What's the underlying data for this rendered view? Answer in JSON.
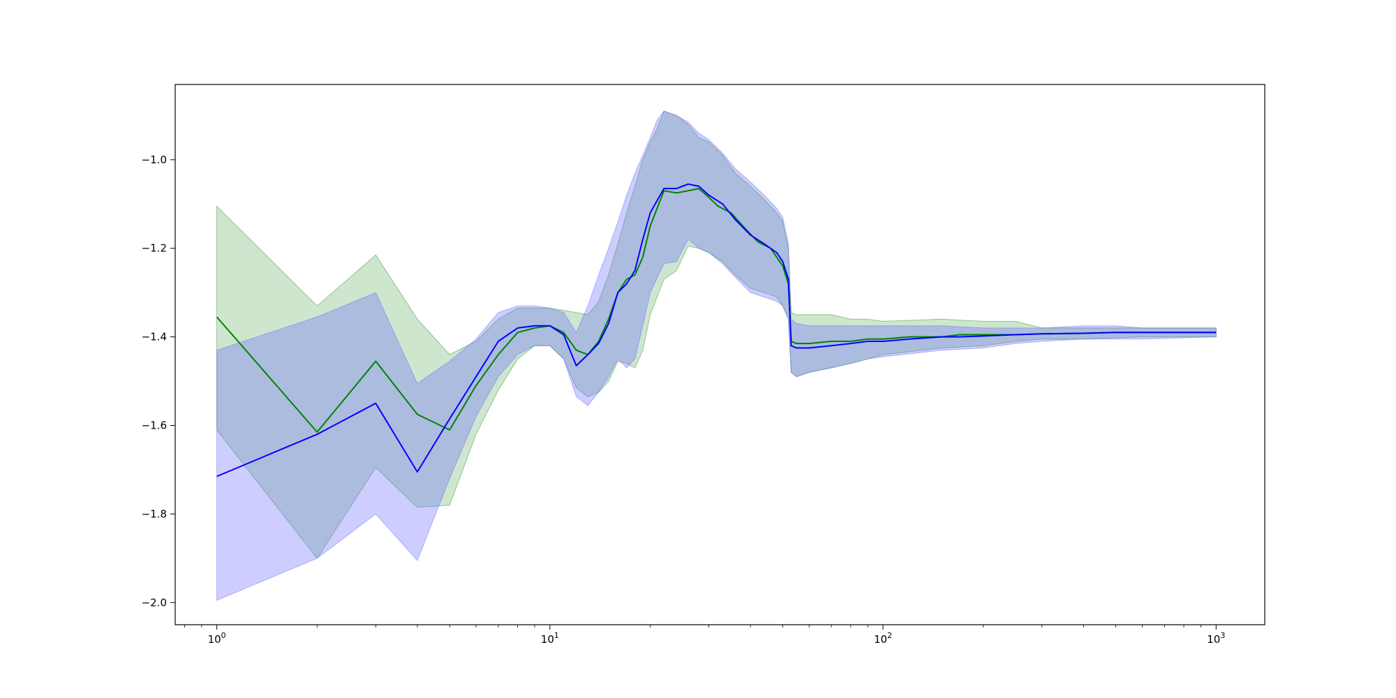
{
  "chart_data": {
    "type": "line",
    "title": "",
    "xlabel": "",
    "ylabel": "",
    "x_scale": "log",
    "xlim": [
      0.75,
      1400
    ],
    "ylim": [
      -2.05,
      -0.83
    ],
    "grid": false,
    "legend": "none",
    "x_ticks": [
      {
        "value": 1,
        "base": "10",
        "exp": "0"
      },
      {
        "value": 10,
        "base": "10",
        "exp": "1"
      },
      {
        "value": 100,
        "base": "10",
        "exp": "2"
      },
      {
        "value": 1000,
        "base": "10",
        "exp": "3"
      }
    ],
    "y_ticks": [
      {
        "value": -1.0,
        "label": "−1.0"
      },
      {
        "value": -1.2,
        "label": "−1.2"
      },
      {
        "value": -1.4,
        "label": "−1.4"
      },
      {
        "value": -1.6,
        "label": "−1.6"
      },
      {
        "value": -1.8,
        "label": "−1.8"
      },
      {
        "value": -2.0,
        "label": "−2.0"
      }
    ],
    "series": [
      {
        "color": "#008000",
        "band_color": "#1f8f1f",
        "band_opacity": 0.22,
        "line": [
          [
            1,
            -1.355
          ],
          [
            2,
            -1.615
          ],
          [
            3,
            -1.455
          ],
          [
            4,
            -1.575
          ],
          [
            5,
            -1.61
          ],
          [
            6,
            -1.51
          ],
          [
            7,
            -1.44
          ],
          [
            8,
            -1.39
          ],
          [
            9,
            -1.38
          ],
          [
            10,
            -1.375
          ],
          [
            11,
            -1.39
          ],
          [
            12,
            -1.43
          ],
          [
            13,
            -1.44
          ],
          [
            14,
            -1.41
          ],
          [
            15,
            -1.36
          ],
          [
            16,
            -1.3
          ],
          [
            17,
            -1.27
          ],
          [
            18,
            -1.26
          ],
          [
            19,
            -1.22
          ],
          [
            20,
            -1.15
          ],
          [
            22,
            -1.07
          ],
          [
            24,
            -1.075
          ],
          [
            26,
            -1.07
          ],
          [
            28,
            -1.065
          ],
          [
            30,
            -1.085
          ],
          [
            32,
            -1.105
          ],
          [
            35,
            -1.12
          ],
          [
            38,
            -1.15
          ],
          [
            42,
            -1.185
          ],
          [
            46,
            -1.2
          ],
          [
            50,
            -1.24
          ],
          [
            52,
            -1.28
          ],
          [
            53,
            -1.41
          ],
          [
            55,
            -1.415
          ],
          [
            60,
            -1.415
          ],
          [
            70,
            -1.41
          ],
          [
            80,
            -1.41
          ],
          [
            90,
            -1.405
          ],
          [
            100,
            -1.405
          ],
          [
            120,
            -1.4
          ],
          [
            150,
            -1.4
          ],
          [
            170,
            -1.395
          ],
          [
            200,
            -1.395
          ],
          [
            250,
            -1.395
          ],
          [
            300,
            -1.393
          ],
          [
            400,
            -1.392
          ],
          [
            500,
            -1.39
          ],
          [
            700,
            -1.39
          ],
          [
            1000,
            -1.39
          ]
        ],
        "upper": [
          [
            1,
            -1.105
          ],
          [
            2,
            -1.33
          ],
          [
            3,
            -1.215
          ],
          [
            4,
            -1.36
          ],
          [
            5,
            -1.44
          ],
          [
            6,
            -1.41
          ],
          [
            7,
            -1.36
          ],
          [
            8,
            -1.335
          ],
          [
            9,
            -1.335
          ],
          [
            10,
            -1.335
          ],
          [
            11,
            -1.34
          ],
          [
            12,
            -1.345
          ],
          [
            13,
            -1.35
          ],
          [
            14,
            -1.32
          ],
          [
            15,
            -1.26
          ],
          [
            16,
            -1.19
          ],
          [
            17,
            -1.12
          ],
          [
            18,
            -1.06
          ],
          [
            19,
            -1.0
          ],
          [
            20,
            -0.96
          ],
          [
            21,
            -0.93
          ],
          [
            22,
            -0.89
          ],
          [
            24,
            -0.9
          ],
          [
            26,
            -0.92
          ],
          [
            28,
            -0.95
          ],
          [
            30,
            -0.96
          ],
          [
            33,
            -0.99
          ],
          [
            36,
            -1.03
          ],
          [
            40,
            -1.06
          ],
          [
            44,
            -1.09
          ],
          [
            48,
            -1.12
          ],
          [
            50,
            -1.14
          ],
          [
            52,
            -1.2
          ],
          [
            53,
            -1.345
          ],
          [
            55,
            -1.35
          ],
          [
            60,
            -1.35
          ],
          [
            70,
            -1.35
          ],
          [
            80,
            -1.36
          ],
          [
            90,
            -1.36
          ],
          [
            100,
            -1.365
          ],
          [
            150,
            -1.36
          ],
          [
            200,
            -1.365
          ],
          [
            250,
            -1.365
          ],
          [
            300,
            -1.38
          ],
          [
            400,
            -1.38
          ],
          [
            600,
            -1.38
          ],
          [
            1000,
            -1.38
          ]
        ],
        "lower": [
          [
            1,
            -1.61
          ],
          [
            2,
            -1.9
          ],
          [
            3,
            -1.695
          ],
          [
            4,
            -1.785
          ],
          [
            5,
            -1.78
          ],
          [
            6,
            -1.62
          ],
          [
            7,
            -1.52
          ],
          [
            8,
            -1.45
          ],
          [
            9,
            -1.42
          ],
          [
            10,
            -1.42
          ],
          [
            11,
            -1.45
          ],
          [
            12,
            -1.515
          ],
          [
            13,
            -1.535
          ],
          [
            14,
            -1.525
          ],
          [
            15,
            -1.5
          ],
          [
            16,
            -1.455
          ],
          [
            17,
            -1.46
          ],
          [
            18,
            -1.47
          ],
          [
            19,
            -1.43
          ],
          [
            20,
            -1.35
          ],
          [
            22,
            -1.27
          ],
          [
            24,
            -1.25
          ],
          [
            26,
            -1.195
          ],
          [
            28,
            -1.2
          ],
          [
            30,
            -1.21
          ],
          [
            33,
            -1.23
          ],
          [
            36,
            -1.26
          ],
          [
            40,
            -1.29
          ],
          [
            44,
            -1.3
          ],
          [
            48,
            -1.31
          ],
          [
            50,
            -1.33
          ],
          [
            52,
            -1.36
          ],
          [
            53,
            -1.48
          ],
          [
            55,
            -1.49
          ],
          [
            60,
            -1.48
          ],
          [
            70,
            -1.47
          ],
          [
            80,
            -1.46
          ],
          [
            90,
            -1.45
          ],
          [
            100,
            -1.44
          ],
          [
            150,
            -1.425
          ],
          [
            200,
            -1.42
          ],
          [
            250,
            -1.41
          ],
          [
            300,
            -1.405
          ],
          [
            400,
            -1.405
          ],
          [
            600,
            -1.4
          ],
          [
            1000,
            -1.4
          ]
        ]
      },
      {
        "color": "#0000ff",
        "band_color": "#6666ff",
        "band_opacity": 0.33,
        "line": [
          [
            1,
            -1.715
          ],
          [
            2,
            -1.62
          ],
          [
            3,
            -1.55
          ],
          [
            4,
            -1.705
          ],
          [
            5,
            -1.585
          ],
          [
            6,
            -1.49
          ],
          [
            7,
            -1.41
          ],
          [
            8,
            -1.38
          ],
          [
            9,
            -1.375
          ],
          [
            10,
            -1.375
          ],
          [
            11,
            -1.395
          ],
          [
            12,
            -1.465
          ],
          [
            13,
            -1.44
          ],
          [
            14,
            -1.415
          ],
          [
            15,
            -1.37
          ],
          [
            16,
            -1.3
          ],
          [
            17,
            -1.28
          ],
          [
            18,
            -1.25
          ],
          [
            19,
            -1.18
          ],
          [
            20,
            -1.12
          ],
          [
            22,
            -1.065
          ],
          [
            24,
            -1.065
          ],
          [
            26,
            -1.055
          ],
          [
            28,
            -1.06
          ],
          [
            30,
            -1.08
          ],
          [
            33,
            -1.1
          ],
          [
            36,
            -1.135
          ],
          [
            40,
            -1.17
          ],
          [
            44,
            -1.19
          ],
          [
            48,
            -1.21
          ],
          [
            50,
            -1.23
          ],
          [
            52,
            -1.27
          ],
          [
            53,
            -1.42
          ],
          [
            55,
            -1.425
          ],
          [
            60,
            -1.425
          ],
          [
            70,
            -1.42
          ],
          [
            80,
            -1.415
          ],
          [
            90,
            -1.41
          ],
          [
            100,
            -1.41
          ],
          [
            120,
            -1.405
          ],
          [
            150,
            -1.4
          ],
          [
            170,
            -1.4
          ],
          [
            200,
            -1.398
          ],
          [
            250,
            -1.395
          ],
          [
            300,
            -1.393
          ],
          [
            400,
            -1.392
          ],
          [
            500,
            -1.39
          ],
          [
            700,
            -1.39
          ],
          [
            1000,
            -1.39
          ]
        ],
        "upper": [
          [
            1,
            -1.43
          ],
          [
            2,
            -1.355
          ],
          [
            3,
            -1.3
          ],
          [
            4,
            -1.505
          ],
          [
            5,
            -1.455
          ],
          [
            6,
            -1.405
          ],
          [
            7,
            -1.345
          ],
          [
            8,
            -1.33
          ],
          [
            9,
            -1.33
          ],
          [
            10,
            -1.335
          ],
          [
            11,
            -1.345
          ],
          [
            12,
            -1.39
          ],
          [
            13,
            -1.33
          ],
          [
            14,
            -1.26
          ],
          [
            15,
            -1.2
          ],
          [
            16,
            -1.14
          ],
          [
            17,
            -1.08
          ],
          [
            18,
            -1.03
          ],
          [
            19,
            -0.99
          ],
          [
            20,
            -0.95
          ],
          [
            21,
            -0.91
          ],
          [
            22,
            -0.89
          ],
          [
            24,
            -0.9
          ],
          [
            26,
            -0.915
          ],
          [
            28,
            -0.94
          ],
          [
            30,
            -0.955
          ],
          [
            33,
            -0.985
          ],
          [
            36,
            -1.02
          ],
          [
            40,
            -1.05
          ],
          [
            44,
            -1.08
          ],
          [
            48,
            -1.11
          ],
          [
            50,
            -1.13
          ],
          [
            52,
            -1.19
          ],
          [
            53,
            -1.36
          ],
          [
            55,
            -1.37
          ],
          [
            60,
            -1.375
          ],
          [
            70,
            -1.375
          ],
          [
            80,
            -1.375
          ],
          [
            100,
            -1.375
          ],
          [
            150,
            -1.375
          ],
          [
            200,
            -1.38
          ],
          [
            300,
            -1.38
          ],
          [
            400,
            -1.375
          ],
          [
            500,
            -1.375
          ],
          [
            600,
            -1.38
          ],
          [
            1000,
            -1.38
          ]
        ],
        "lower": [
          [
            1,
            -1.995
          ],
          [
            2,
            -1.9
          ],
          [
            3,
            -1.8
          ],
          [
            4,
            -1.905
          ],
          [
            5,
            -1.72
          ],
          [
            6,
            -1.58
          ],
          [
            7,
            -1.49
          ],
          [
            8,
            -1.44
          ],
          [
            9,
            -1.42
          ],
          [
            10,
            -1.42
          ],
          [
            11,
            -1.45
          ],
          [
            12,
            -1.535
          ],
          [
            13,
            -1.555
          ],
          [
            14,
            -1.525
          ],
          [
            15,
            -1.49
          ],
          [
            16,
            -1.45
          ],
          [
            17,
            -1.47
          ],
          [
            18,
            -1.45
          ],
          [
            19,
            -1.375
          ],
          [
            20,
            -1.3
          ],
          [
            22,
            -1.235
          ],
          [
            24,
            -1.23
          ],
          [
            26,
            -1.18
          ],
          [
            28,
            -1.2
          ],
          [
            30,
            -1.21
          ],
          [
            33,
            -1.235
          ],
          [
            36,
            -1.265
          ],
          [
            40,
            -1.3
          ],
          [
            44,
            -1.31
          ],
          [
            48,
            -1.32
          ],
          [
            50,
            -1.33
          ],
          [
            52,
            -1.36
          ],
          [
            53,
            -1.48
          ],
          [
            55,
            -1.49
          ],
          [
            60,
            -1.48
          ],
          [
            70,
            -1.47
          ],
          [
            80,
            -1.46
          ],
          [
            90,
            -1.45
          ],
          [
            100,
            -1.445
          ],
          [
            150,
            -1.43
          ],
          [
            200,
            -1.425
          ],
          [
            250,
            -1.415
          ],
          [
            300,
            -1.41
          ],
          [
            400,
            -1.405
          ],
          [
            600,
            -1.405
          ],
          [
            1000,
            -1.4
          ]
        ]
      }
    ]
  }
}
